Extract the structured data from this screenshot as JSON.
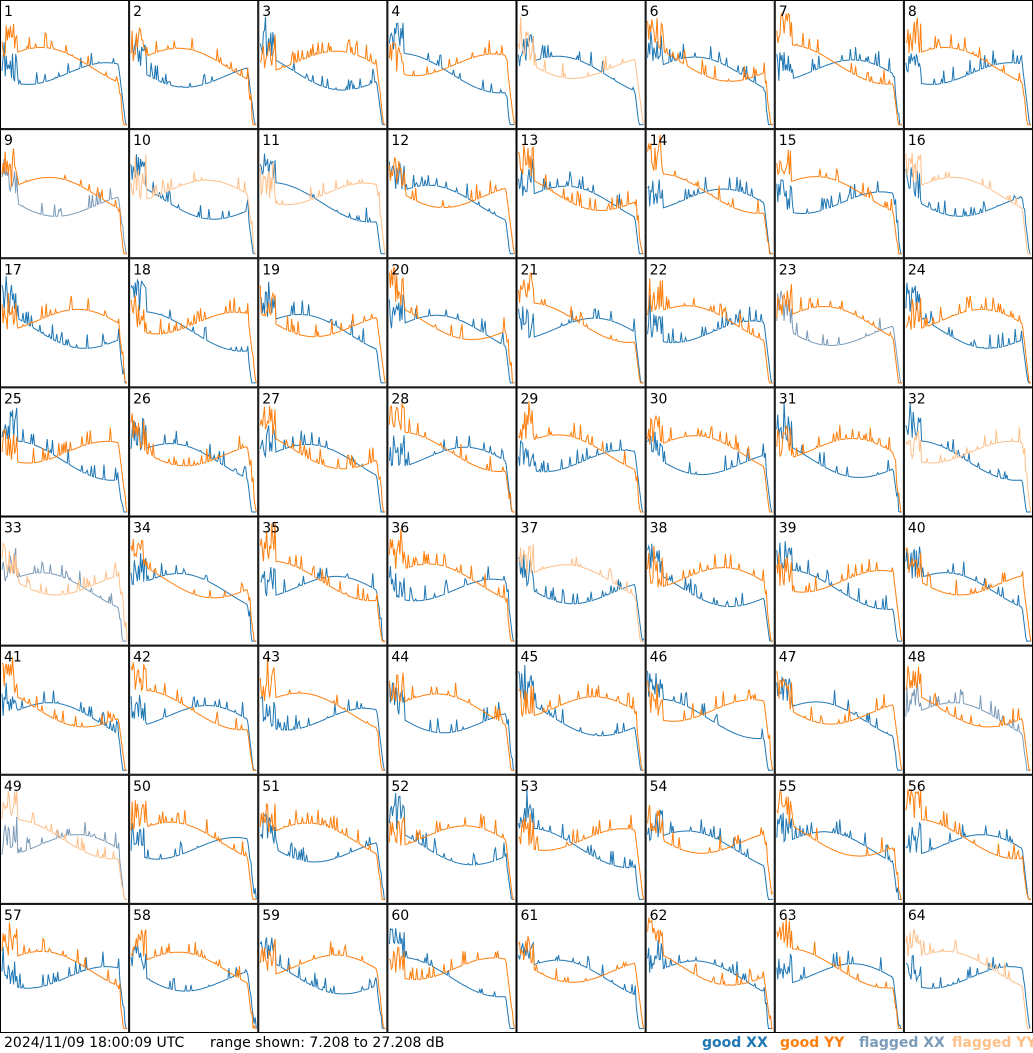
{
  "footer": {
    "timestamp": "2024/11/09 18:00:09 UTC",
    "range": "range shown: 7.208 to 27.208 dB"
  },
  "legend": {
    "good_xx": "good XX",
    "good_yy": "good YY",
    "flagged_xx": "flagged XX",
    "flagged_yy": "flagged YY"
  },
  "colors": {
    "good_xx": "#1f77b4",
    "good_yy": "#ff7f0e",
    "flagged_xx": "#7b9bb8",
    "flagged_yy": "#ffc08a"
  },
  "chart_data": {
    "type": "line",
    "ylim": [
      7.208,
      27.208
    ],
    "grid_rows": 8,
    "grid_cols": 8,
    "panels": [
      {
        "label": "1",
        "xx": "good",
        "yy": "good"
      },
      {
        "label": "2",
        "xx": "good",
        "yy": "good"
      },
      {
        "label": "3",
        "xx": "good",
        "yy": "good"
      },
      {
        "label": "4",
        "xx": "good",
        "yy": "good"
      },
      {
        "label": "5",
        "xx": "good",
        "yy": "flagged"
      },
      {
        "label": "6",
        "xx": "good",
        "yy": "good"
      },
      {
        "label": "7",
        "xx": "good",
        "yy": "good"
      },
      {
        "label": "8",
        "xx": "good",
        "yy": "good"
      },
      {
        "label": "9",
        "xx": "flagged",
        "yy": "good"
      },
      {
        "label": "10",
        "xx": "good",
        "yy": "flagged"
      },
      {
        "label": "11",
        "xx": "good",
        "yy": "flagged"
      },
      {
        "label": "12",
        "xx": "good",
        "yy": "good"
      },
      {
        "label": "13",
        "xx": "good",
        "yy": "good"
      },
      {
        "label": "14",
        "xx": "good",
        "yy": "good"
      },
      {
        "label": "15",
        "xx": "good",
        "yy": "good"
      },
      {
        "label": "16",
        "xx": "good",
        "yy": "flagged"
      },
      {
        "label": "17",
        "xx": "good",
        "yy": "good"
      },
      {
        "label": "18",
        "xx": "good",
        "yy": "good"
      },
      {
        "label": "19",
        "xx": "good",
        "yy": "good"
      },
      {
        "label": "20",
        "xx": "good",
        "yy": "good"
      },
      {
        "label": "21",
        "xx": "good",
        "yy": "good"
      },
      {
        "label": "22",
        "xx": "good",
        "yy": "good"
      },
      {
        "label": "23",
        "xx": "flagged",
        "yy": "good"
      },
      {
        "label": "24",
        "xx": "good",
        "yy": "good"
      },
      {
        "label": "25",
        "xx": "good",
        "yy": "good"
      },
      {
        "label": "26",
        "xx": "good",
        "yy": "good"
      },
      {
        "label": "27",
        "xx": "good",
        "yy": "good"
      },
      {
        "label": "28",
        "xx": "good",
        "yy": "good"
      },
      {
        "label": "29",
        "xx": "good",
        "yy": "good"
      },
      {
        "label": "30",
        "xx": "good",
        "yy": "good"
      },
      {
        "label": "31",
        "xx": "good",
        "yy": "good"
      },
      {
        "label": "32",
        "xx": "good",
        "yy": "flagged"
      },
      {
        "label": "33",
        "xx": "flagged",
        "yy": "flagged"
      },
      {
        "label": "34",
        "xx": "good",
        "yy": "good"
      },
      {
        "label": "35",
        "xx": "good",
        "yy": "good"
      },
      {
        "label": "36",
        "xx": "good",
        "yy": "good"
      },
      {
        "label": "37",
        "xx": "good",
        "yy": "flagged"
      },
      {
        "label": "38",
        "xx": "good",
        "yy": "good"
      },
      {
        "label": "39",
        "xx": "good",
        "yy": "good"
      },
      {
        "label": "40",
        "xx": "good",
        "yy": "good"
      },
      {
        "label": "41",
        "xx": "good",
        "yy": "good"
      },
      {
        "label": "42",
        "xx": "good",
        "yy": "good"
      },
      {
        "label": "43",
        "xx": "good",
        "yy": "good"
      },
      {
        "label": "44",
        "xx": "good",
        "yy": "good"
      },
      {
        "label": "45",
        "xx": "good",
        "yy": "good"
      },
      {
        "label": "46",
        "xx": "good",
        "yy": "good"
      },
      {
        "label": "47",
        "xx": "good",
        "yy": "good"
      },
      {
        "label": "48",
        "xx": "flagged",
        "yy": "good"
      },
      {
        "label": "49",
        "xx": "flagged",
        "yy": "flagged"
      },
      {
        "label": "50",
        "xx": "good",
        "yy": "good"
      },
      {
        "label": "51",
        "xx": "good",
        "yy": "good"
      },
      {
        "label": "52",
        "xx": "good",
        "yy": "good"
      },
      {
        "label": "53",
        "xx": "good",
        "yy": "good"
      },
      {
        "label": "54",
        "xx": "good",
        "yy": "good"
      },
      {
        "label": "55",
        "xx": "good",
        "yy": "good"
      },
      {
        "label": "56",
        "xx": "good",
        "yy": "good"
      },
      {
        "label": "57",
        "xx": "good",
        "yy": "good"
      },
      {
        "label": "58",
        "xx": "good",
        "yy": "good"
      },
      {
        "label": "59",
        "xx": "good",
        "yy": "good"
      },
      {
        "label": "60",
        "xx": "good",
        "yy": "good"
      },
      {
        "label": "61",
        "xx": "good",
        "yy": "good"
      },
      {
        "label": "62",
        "xx": "good",
        "yy": "good"
      },
      {
        "label": "63",
        "xx": "good",
        "yy": "good"
      },
      {
        "label": "64",
        "xx": "good",
        "yy": "flagged"
      }
    ]
  }
}
